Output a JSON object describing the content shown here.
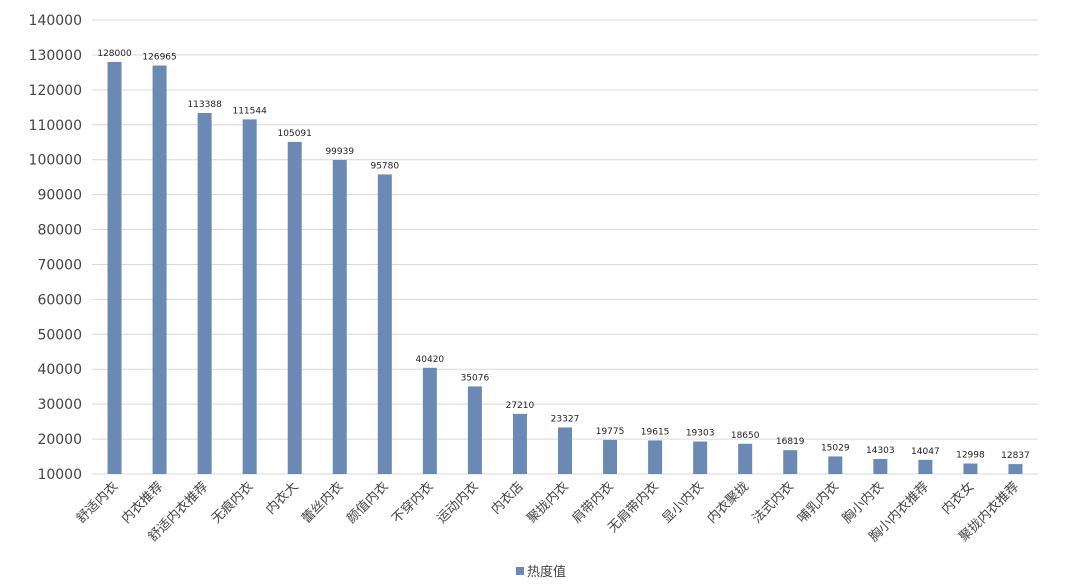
{
  "chart_data": {
    "type": "bar",
    "categories": [
      "舒适内衣",
      "内衣推荐",
      "舒适内衣推荐",
      "无痕内衣",
      "内衣大",
      "蕾丝内衣",
      "颜值内衣",
      "不穿内衣",
      "运动内衣",
      "内衣店",
      "聚拢内衣",
      "肩带内衣",
      "无肩带内衣",
      "显小内衣",
      "内衣聚拢",
      "法式内衣",
      "哺乳内衣",
      "胸小内衣",
      "胸小内衣推荐",
      "内衣女",
      "聚拢内衣推荐"
    ],
    "series": [
      {
        "name": "热度值",
        "values": [
          128000,
          126965,
          113388,
          111544,
          105091,
          99939,
          95780,
          40420,
          35076,
          27210,
          23327,
          19775,
          19615,
          19303,
          18650,
          16819,
          15029,
          14303,
          14047,
          12998,
          12837
        ],
        "color": "#6a8ab5"
      }
    ],
    "yticks": [
      10000,
      20000,
      30000,
      40000,
      50000,
      60000,
      70000,
      80000,
      90000,
      100000,
      110000,
      120000,
      130000,
      140000
    ],
    "ylim": [
      10000,
      140000
    ],
    "grid": true,
    "legend_position": "bottom-center",
    "title": "",
    "xlabel": "",
    "ylabel": ""
  }
}
